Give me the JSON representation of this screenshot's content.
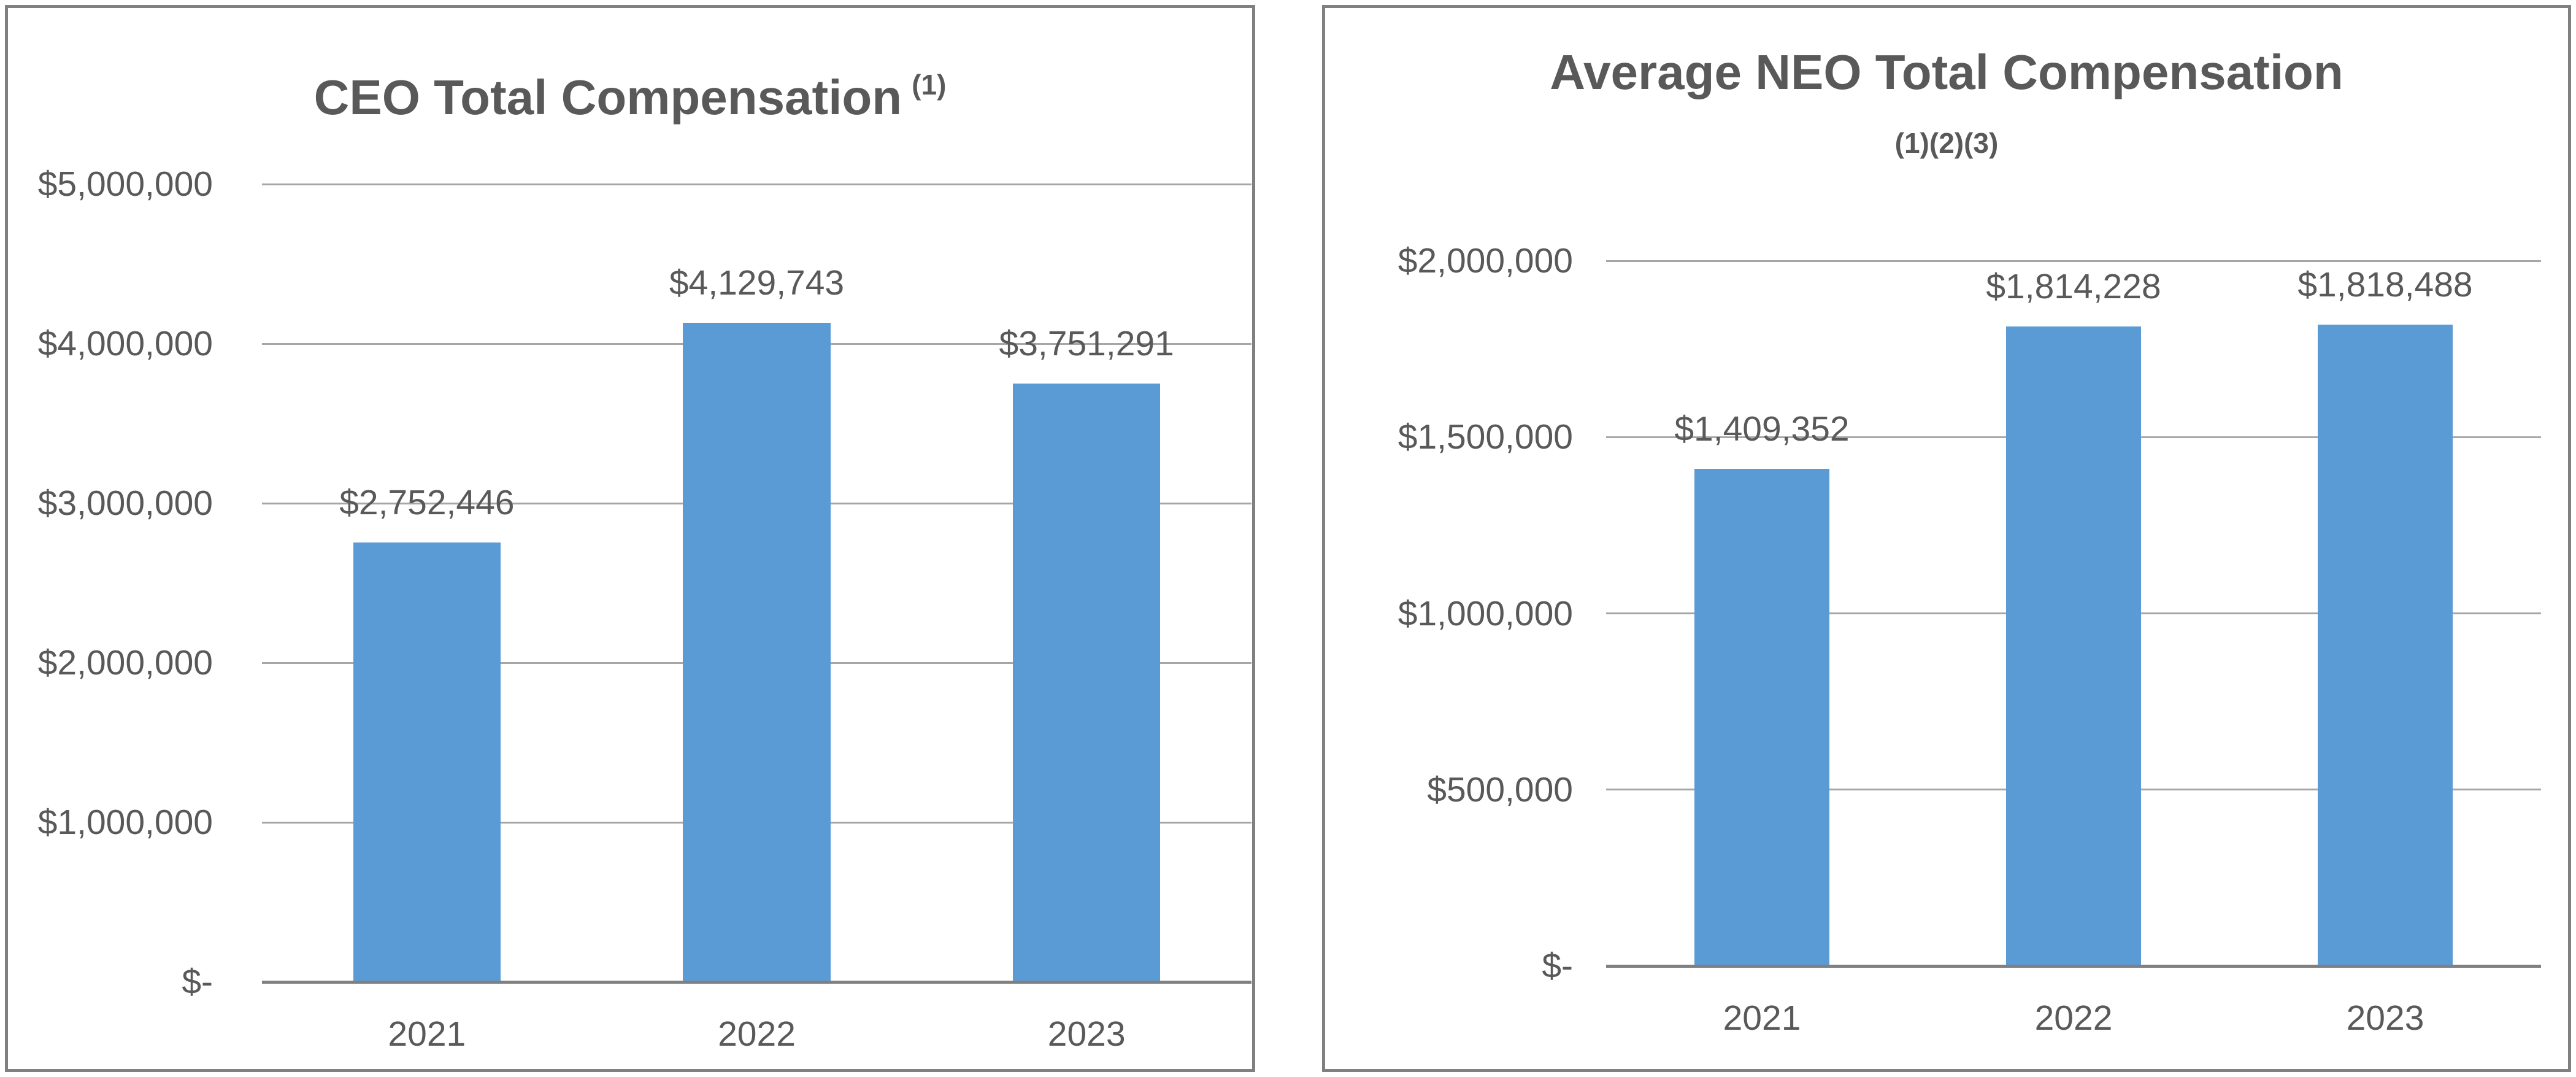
{
  "chart_data": [
    {
      "type": "bar",
      "title": "CEO Total Compensation",
      "title_superscript": "(1)",
      "categories": [
        "2021",
        "2022",
        "2023"
      ],
      "values": [
        2752446,
        4129743,
        3751291
      ],
      "data_labels": [
        "$2,752,446",
        "$4,129,743",
        "$3,751,291"
      ],
      "y_ticks": [
        {
          "label": "$5,000,000",
          "value": 5000000
        },
        {
          "label": "$4,000,000",
          "value": 4000000
        },
        {
          "label": "$3,000,000",
          "value": 3000000
        },
        {
          "label": "$2,000,000",
          "value": 2000000
        },
        {
          "label": "$1,000,000",
          "value": 1000000
        },
        {
          "label": "$-",
          "value": 0
        }
      ],
      "ylim": [
        0,
        5000000
      ],
      "xlabel": "",
      "ylabel": "",
      "legend": "none",
      "grid": "horizontal",
      "bar_color": "#5B9BD5",
      "grid_color": "#A6A6A6",
      "axis_color": "#808080",
      "text_color": "#595959"
    },
    {
      "type": "bar",
      "title": "Average NEO Total Compensation",
      "title_superscript": "(1)(2)(3)",
      "categories": [
        "2021",
        "2022",
        "2023"
      ],
      "values": [
        1409352,
        1814228,
        1818488
      ],
      "data_labels": [
        "$1,409,352",
        "$1,814,228",
        "$1,818,488"
      ],
      "y_ticks": [
        {
          "label": "$2,000,000",
          "value": 2000000
        },
        {
          "label": "$1,500,000",
          "value": 1500000
        },
        {
          "label": "$1,000,000",
          "value": 1000000
        },
        {
          "label": "$500,000",
          "value": 500000
        },
        {
          "label": "$-",
          "value": 0
        }
      ],
      "ylim": [
        0,
        2000000
      ],
      "xlabel": "",
      "ylabel": "",
      "legend": "none",
      "grid": "horizontal",
      "bar_color": "#5B9BD5",
      "grid_color": "#A6A6A6",
      "axis_color": "#808080",
      "text_color": "#595959"
    }
  ]
}
